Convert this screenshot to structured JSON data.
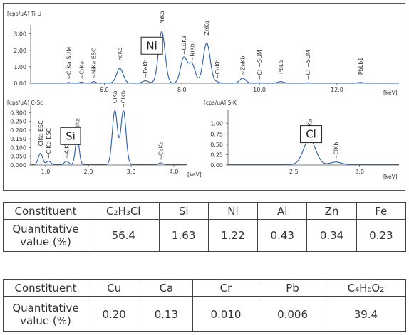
{
  "chart_data": [
    {
      "type": "line",
      "channel_label": "[cps/uA] Ti-U",
      "xlabel": "[keV]",
      "xlim": [
        4.1,
        13.6
      ],
      "ylim": [
        0,
        3.2
      ],
      "x_ticks": [
        "6.0",
        "8.0",
        "10.0",
        "12.0"
      ],
      "y_ticks": [
        "0.00",
        "1.00",
        "2.00",
        "3.00"
      ],
      "element_box": "Ni",
      "element_box_at": [
        6.95,
        2.8
      ],
      "peaks": [
        {
          "x": 5.08,
          "y": 0.05,
          "w": 0.04,
          "label": "CrKa SUM"
        },
        {
          "x": 5.41,
          "y": 0.07,
          "w": 0.05,
          "label": "CrKa"
        },
        {
          "x": 5.73,
          "y": 0.1,
          "w": 0.05,
          "label": "NiKa ESC"
        },
        {
          "x": 6.4,
          "y": 0.9,
          "w": 0.085,
          "label": "FeKa"
        },
        {
          "x": 7.06,
          "y": 0.15,
          "w": 0.08,
          "label": "FeKb"
        },
        {
          "x": 7.48,
          "y": 3.15,
          "w": 0.085,
          "label": "NiKa"
        },
        {
          "x": 8.05,
          "y": 1.55,
          "w": 0.085,
          "label": "CuKa"
        },
        {
          "x": 8.26,
          "y": 1.15,
          "w": 0.085,
          "label": "NiKb"
        },
        {
          "x": 8.64,
          "y": 2.45,
          "w": 0.09,
          "label": "ZnKa"
        },
        {
          "x": 8.91,
          "y": 0.08,
          "w": 0.06,
          "label": "CuKb"
        },
        {
          "x": 9.57,
          "y": 0.3,
          "w": 0.08,
          "label": "ZnKb"
        },
        {
          "x": 10.0,
          "y": 0.03,
          "w": 0.05,
          "label": "Cl"
        },
        {
          "x": 10.0,
          "y": 0.0,
          "w": 0.05,
          "label": "SUM"
        },
        {
          "x": 10.55,
          "y": 0.1,
          "w": 0.08,
          "label": "PbLa"
        },
        {
          "x": 11.25,
          "y": 0.03,
          "w": 0.05,
          "label": "Cl"
        },
        {
          "x": 11.25,
          "y": 0.0,
          "w": 0.05,
          "label": "SUM"
        },
        {
          "x": 12.61,
          "y": 0.05,
          "w": 0.08,
          "label": "PbLb1"
        }
      ]
    },
    {
      "type": "line",
      "channel_label": "[cps/uA] C-Sc",
      "xlabel": "[keV]",
      "xlim": [
        0.65,
        4.3
      ],
      "ylim": [
        0,
        0.31
      ],
      "x_ticks": [
        "1.0",
        "2.0",
        "3.0",
        "4.0"
      ],
      "y_ticks": [
        "0.000",
        "0.050",
        "0.100",
        "0.150",
        "0.200",
        "0.250",
        "0.300"
      ],
      "element_box": "Si",
      "element_box_at": [
        1.35,
        0.215
      ],
      "peaks": [
        {
          "x": 0.88,
          "y": 0.065,
          "w": 0.05,
          "label": "ClKa ESC"
        },
        {
          "x": 1.07,
          "y": 0.02,
          "w": 0.05,
          "label": "ClKb ESC"
        },
        {
          "x": 1.49,
          "y": 0.02,
          "w": 0.05,
          "label": "AlKa"
        },
        {
          "x": 1.74,
          "y": 0.155,
          "w": 0.045,
          "label": "SiKa"
        },
        {
          "x": 2.62,
          "y": 0.31,
          "w": 0.06,
          "label": "ClKa"
        },
        {
          "x": 2.82,
          "y": 0.31,
          "w": 0.06,
          "label": "ClKb"
        },
        {
          "x": 3.69,
          "y": 0.01,
          "w": 0.05,
          "label": "CaKa"
        }
      ]
    },
    {
      "type": "line",
      "channel_label": "[cps/uA] S-K",
      "xlabel": "[keV]",
      "xlim": [
        2.0,
        3.3
      ],
      "ylim": [
        0,
        1.2
      ],
      "x_ticks": [
        "2.5",
        "3.0"
      ],
      "y_ticks": [
        "0.00",
        "0.25",
        "0.50",
        "0.75",
        "1.00"
      ],
      "element_box": "Cl",
      "element_box_at": [
        2.55,
        0.95
      ],
      "peaks": [
        {
          "x": 2.62,
          "y": 0.62,
          "w": 0.045,
          "label": "ClKa"
        },
        {
          "x": 2.82,
          "y": 0.06,
          "w": 0.04,
          "label": "ClKb"
        }
      ]
    },
    {
      "type": "table",
      "header": [
        "Constituent",
        "C₂H₃Cl",
        "Si",
        "Ni",
        "Al",
        "Zn",
        "Fe"
      ],
      "row_label": "Quantitative value (%)",
      "values": [
        "56.4",
        "1.63",
        "1.22",
        "0.43",
        "0.34",
        "0.23"
      ]
    },
    {
      "type": "table",
      "header": [
        "Constituent",
        "Cu",
        "Ca",
        "Cr",
        "Pb",
        "C₄H₆O₂"
      ],
      "row_label": "Quantitative value (%)",
      "values": [
        "0.20",
        "0.13",
        "0.010",
        "0.006",
        "39.4"
      ]
    }
  ],
  "colors": {
    "spectrum": "#2a5ea6",
    "frame": "#555555"
  }
}
